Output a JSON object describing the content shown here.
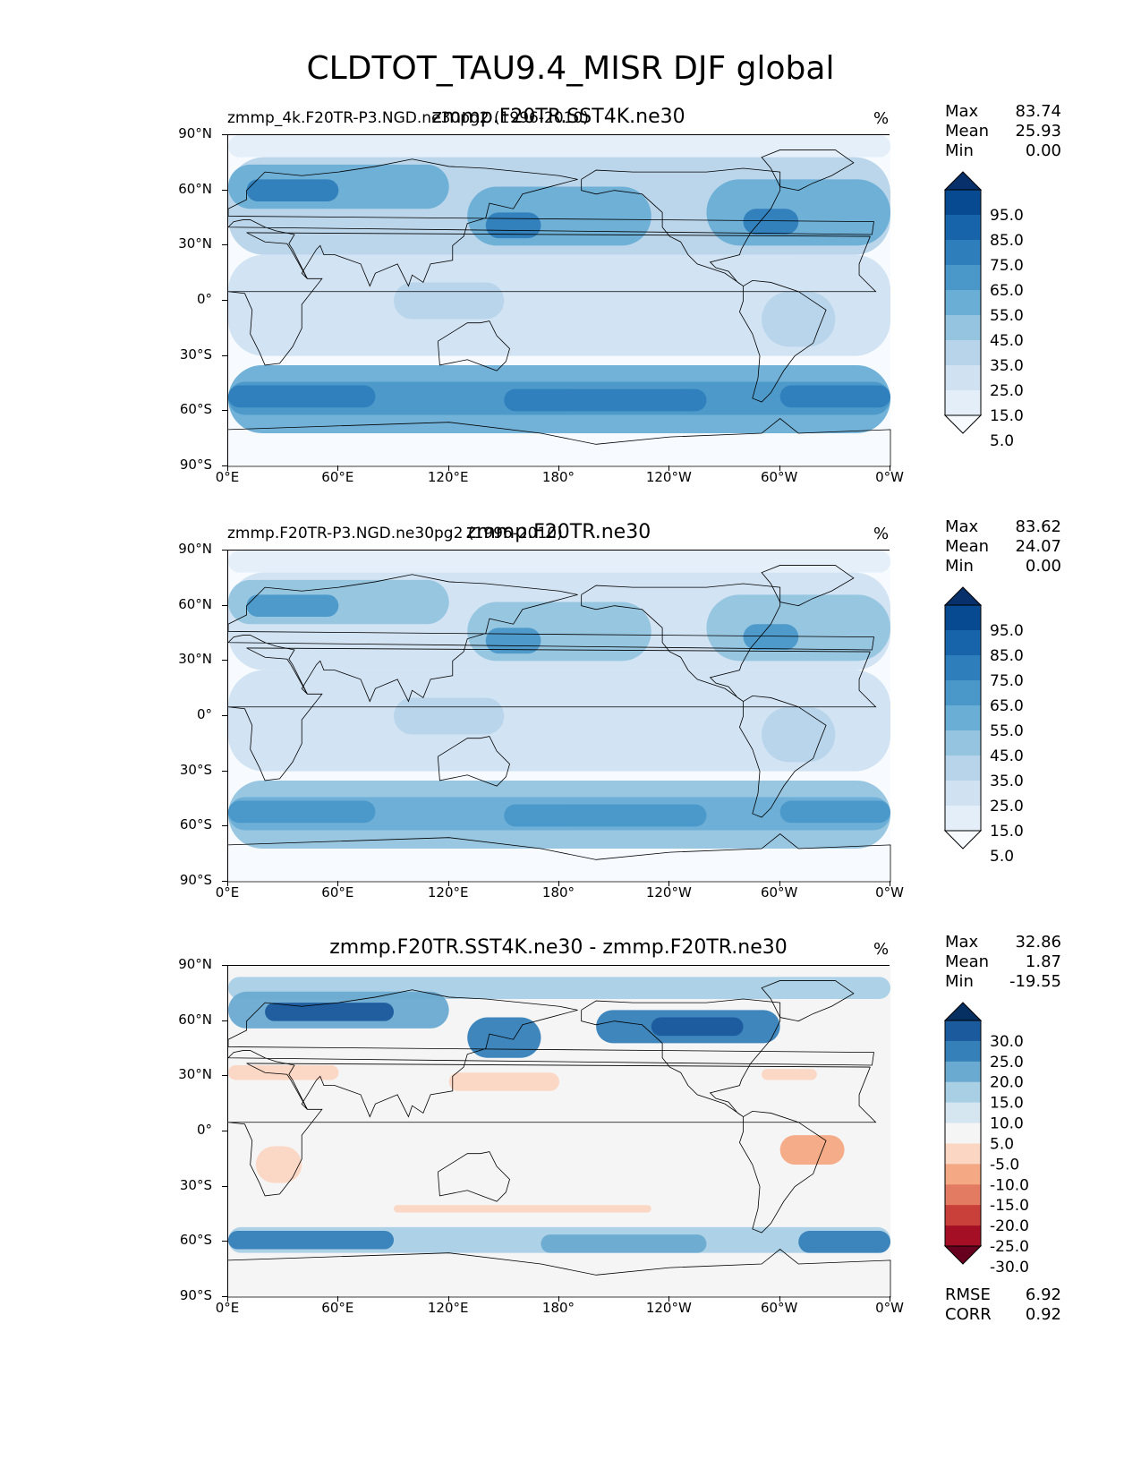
{
  "figure": {
    "title": "CLDTOT_TAU9.4_MISR DJF global"
  },
  "axes": {
    "lat_labels": [
      "90°N",
      "60°N",
      "30°N",
      "0°",
      "30°S",
      "60°S",
      "90°S"
    ],
    "lon_labels": [
      "0°E",
      "60°E",
      "120°E",
      "180°",
      "120°W",
      "60°W",
      "0°W"
    ]
  },
  "panels": [
    {
      "subtitle_left": "zmmp_4k.F20TR-P3.NGD.ne30pg2 (1996-2010)",
      "subtitle_center": "zmmp.F20TR.SST4K.ne30",
      "units": "%",
      "stats": [
        {
          "label": "Max",
          "value": "83.74"
        },
        {
          "label": "Mean",
          "value": "25.93"
        },
        {
          "label": "Min",
          "value": "0.00"
        }
      ],
      "colorbar": {
        "labels": [
          "95.0",
          "85.0",
          "75.0",
          "65.0",
          "55.0",
          "45.0",
          "35.0",
          "25.0",
          "15.0",
          "5.0"
        ],
        "colors": [
          "#f7fbff",
          "#e3eef9",
          "#d0e2f2",
          "#b7d4ea",
          "#94c4df",
          "#6aaed6",
          "#4a98c9",
          "#2e7ebc",
          "#1764ab",
          "#084a91",
          "#08306b"
        ]
      }
    },
    {
      "subtitle_left": "zmmp.F20TR-P3.NGD.ne30pg2 (1996-2010)",
      "subtitle_center": "zmmp.F20TR.ne30",
      "units": "%",
      "stats": [
        {
          "label": "Max",
          "value": "83.62"
        },
        {
          "label": "Mean",
          "value": "24.07"
        },
        {
          "label": "Min",
          "value": "0.00"
        }
      ],
      "colorbar": {
        "labels": [
          "95.0",
          "85.0",
          "75.0",
          "65.0",
          "55.0",
          "45.0",
          "35.0",
          "25.0",
          "15.0",
          "5.0"
        ],
        "colors": [
          "#f7fbff",
          "#e3eef9",
          "#d0e2f2",
          "#b7d4ea",
          "#94c4df",
          "#6aaed6",
          "#4a98c9",
          "#2e7ebc",
          "#1764ab",
          "#084a91",
          "#08306b"
        ]
      }
    },
    {
      "subtitle_left": "",
      "subtitle_center": "zmmp.F20TR.SST4K.ne30 - zmmp.F20TR.ne30",
      "units": "%",
      "stats": [
        {
          "label": "Max",
          "value": "32.86"
        },
        {
          "label": "Mean",
          "value": "1.87"
        },
        {
          "label": "Min",
          "value": "-19.55"
        }
      ],
      "colorbar": {
        "labels": [
          "30.0",
          "25.0",
          "20.0",
          "15.0",
          "10.0",
          "5.0",
          "-5.0",
          "-10.0",
          "-15.0",
          "-20.0",
          "-25.0",
          "-30.0"
        ],
        "colors": [
          "#67001f",
          "#a50f26",
          "#c9403a",
          "#e27b62",
          "#f4a883",
          "#fbd6c2",
          "#f5f5f5",
          "#d5e6f1",
          "#a9cfe5",
          "#6aaad1",
          "#3580b9",
          "#1b5a9c",
          "#053061"
        ]
      },
      "footer": [
        {
          "label": "RMSE",
          "value": "6.92"
        },
        {
          "label": "CORR",
          "value": "0.92"
        }
      ]
    }
  ]
}
